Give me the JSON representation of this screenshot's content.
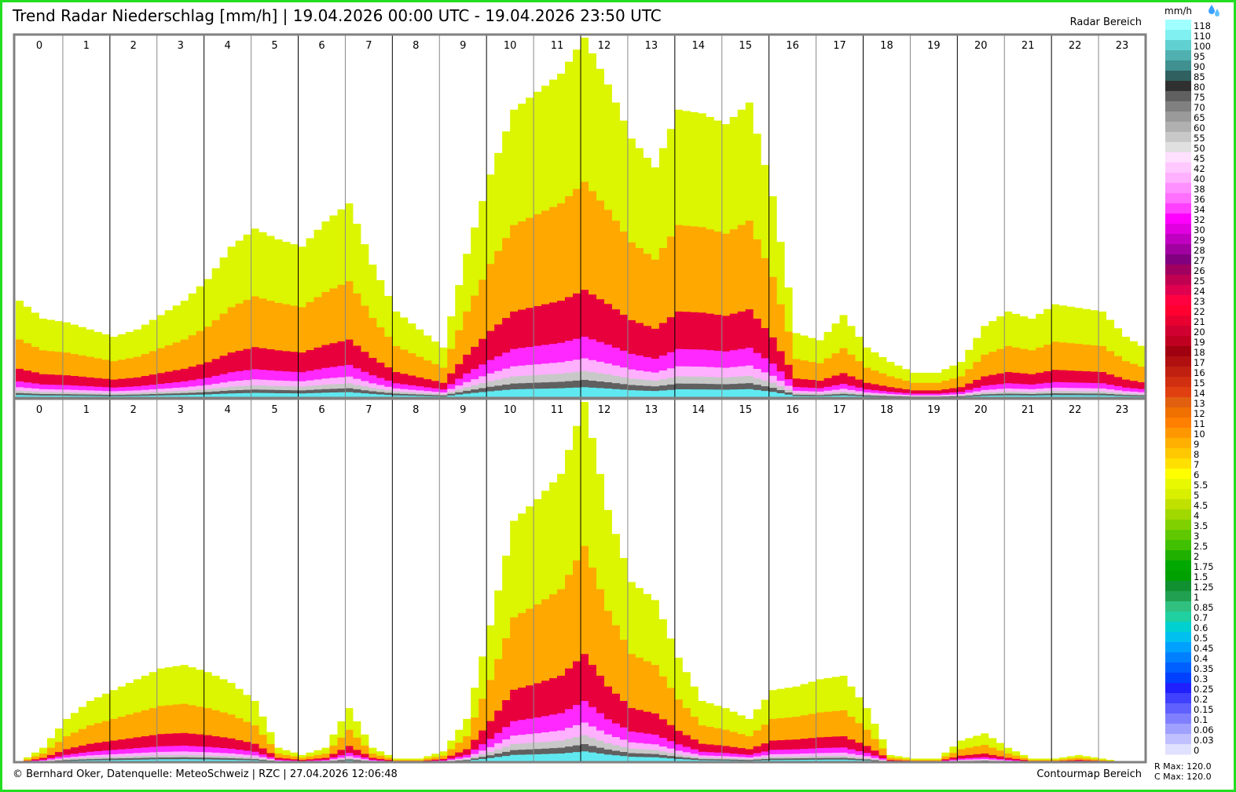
{
  "header": {
    "title": "Trend Radar Niederschlag [mm/h] | 19.04.2026 00:00 UTC - 19.04.2026 23:50 UTC",
    "radar_label": "Radar Bereich",
    "contour_label": "Contourmap Bereich"
  },
  "footer": {
    "credit": "© Bernhard Oker, Datenquelle: MeteoSchweiz | RZC | 27.04.2026 12:06:48",
    "r_max": "R Max: 120.0",
    "c_max": "C Max: 120.0"
  },
  "legend": {
    "unit": "mm/h",
    "icon": "raindrops-icon",
    "levels": [
      {
        "label": "118",
        "color": "#a0ffff"
      },
      {
        "label": "110",
        "color": "#80f0f0"
      },
      {
        "label": "100",
        "color": "#60d0d0"
      },
      {
        "label": "95",
        "color": "#50b0b0"
      },
      {
        "label": "90",
        "color": "#409090"
      },
      {
        "label": "85",
        "color": "#306060"
      },
      {
        "label": "80",
        "color": "#303030"
      },
      {
        "label": "75",
        "color": "#606060"
      },
      {
        "label": "70",
        "color": "#808080"
      },
      {
        "label": "65",
        "color": "#9a9a9a"
      },
      {
        "label": "60",
        "color": "#b0b0b0"
      },
      {
        "label": "55",
        "color": "#c8c8c8"
      },
      {
        "label": "50",
        "color": "#e0e0e0"
      },
      {
        "label": "45",
        "color": "#ffe0ff"
      },
      {
        "label": "42",
        "color": "#ffc8ff"
      },
      {
        "label": "40",
        "color": "#ffb0ff"
      },
      {
        "label": "38",
        "color": "#ff90ff"
      },
      {
        "label": "36",
        "color": "#ff70ff"
      },
      {
        "label": "34",
        "color": "#ff40ff"
      },
      {
        "label": "32",
        "color": "#ff00ff"
      },
      {
        "label": "30",
        "color": "#e000e0"
      },
      {
        "label": "29",
        "color": "#c000c0"
      },
      {
        "label": "28",
        "color": "#a000a0"
      },
      {
        "label": "27",
        "color": "#800080"
      },
      {
        "label": "26",
        "color": "#a00060"
      },
      {
        "label": "25",
        "color": "#c00050"
      },
      {
        "label": "24",
        "color": "#e00050"
      },
      {
        "label": "23",
        "color": "#ff0040"
      },
      {
        "label": "22",
        "color": "#ff0030"
      },
      {
        "label": "21",
        "color": "#e80030"
      },
      {
        "label": "20",
        "color": "#d00030"
      },
      {
        "label": "19",
        "color": "#c00020"
      },
      {
        "label": "18",
        "color": "#a00010"
      },
      {
        "label": "17",
        "color": "#b01010"
      },
      {
        "label": "16",
        "color": "#c02010"
      },
      {
        "label": "15",
        "color": "#d03010"
      },
      {
        "label": "14",
        "color": "#e04010"
      },
      {
        "label": "13",
        "color": "#e06010"
      },
      {
        "label": "12",
        "color": "#f07000"
      },
      {
        "label": "11",
        "color": "#ff8000"
      },
      {
        "label": "10",
        "color": "#ff9800"
      },
      {
        "label": "9",
        "color": "#ffb000"
      },
      {
        "label": "8",
        "color": "#ffc800"
      },
      {
        "label": "7",
        "color": "#ffe000"
      },
      {
        "label": "6",
        "color": "#ffff00"
      },
      {
        "label": "5.5",
        "color": "#e8f800"
      },
      {
        "label": "5",
        "color": "#d8f000"
      },
      {
        "label": "4.5",
        "color": "#c0e000"
      },
      {
        "label": "4",
        "color": "#a0d800"
      },
      {
        "label": "3.5",
        "color": "#80d000"
      },
      {
        "label": "3",
        "color": "#60c800"
      },
      {
        "label": "2.5",
        "color": "#40c000"
      },
      {
        "label": "2",
        "color": "#20b000"
      },
      {
        "label": "1.75",
        "color": "#00a800"
      },
      {
        "label": "1.5",
        "color": "#00a000"
      },
      {
        "label": "1.25",
        "color": "#109030"
      },
      {
        "label": "1",
        "color": "#20a050"
      },
      {
        "label": "0.85",
        "color": "#30c080"
      },
      {
        "label": "0.7",
        "color": "#20d0a0"
      },
      {
        "label": "0.6",
        "color": "#00d0d0"
      },
      {
        "label": "0.5",
        "color": "#00c0f0"
      },
      {
        "label": "0.45",
        "color": "#00a0ff"
      },
      {
        "label": "0.4",
        "color": "#0080ff"
      },
      {
        "label": "0.35",
        "color": "#0060ff"
      },
      {
        "label": "0.3",
        "color": "#0040ff"
      },
      {
        "label": "0.25",
        "color": "#2020ff"
      },
      {
        "label": "0.2",
        "color": "#4040ff"
      },
      {
        "label": "0.15",
        "color": "#6060ff"
      },
      {
        "label": "0.1",
        "color": "#8080ff"
      },
      {
        "label": "0.06",
        "color": "#a0a0ff"
      },
      {
        "label": "0.03",
        "color": "#c0c0ff"
      },
      {
        "label": "0",
        "color": "#e0e0ff"
      }
    ]
  },
  "chart_data": [
    {
      "type": "area",
      "panel": "Radar Bereich",
      "x_unit": "hour (UTC)",
      "xlim": [
        0,
        24
      ],
      "hours": [
        "0",
        "1",
        "2",
        "3",
        "4",
        "5",
        "6",
        "7",
        "8",
        "9",
        "10",
        "11",
        "12",
        "13",
        "14",
        "15",
        "16",
        "17",
        "18",
        "19",
        "20",
        "21",
        "22",
        "23"
      ],
      "ylim": [
        0,
        100
      ],
      "series_colors": [
        "#dcf500",
        "#ffa800",
        "#e8003c",
        "#ff28ff",
        "#ffb0ff",
        "#c8c8c8",
        "#606060",
        "#60e8f0"
      ],
      "points": [
        {
          "x": 0.0,
          "y": 27
        },
        {
          "x": 0.5,
          "y": 22
        },
        {
          "x": 1.0,
          "y": 21
        },
        {
          "x": 1.5,
          "y": 19
        },
        {
          "x": 2.0,
          "y": 17
        },
        {
          "x": 2.5,
          "y": 19
        },
        {
          "x": 3.0,
          "y": 23
        },
        {
          "x": 3.5,
          "y": 27
        },
        {
          "x": 4.0,
          "y": 33
        },
        {
          "x": 4.5,
          "y": 42
        },
        {
          "x": 5.0,
          "y": 47
        },
        {
          "x": 5.5,
          "y": 44
        },
        {
          "x": 6.0,
          "y": 42
        },
        {
          "x": 6.5,
          "y": 49
        },
        {
          "x": 7.0,
          "y": 54
        },
        {
          "x": 7.5,
          "y": 37
        },
        {
          "x": 8.0,
          "y": 24
        },
        {
          "x": 8.5,
          "y": 19
        },
        {
          "x": 9.0,
          "y": 14
        },
        {
          "x": 9.5,
          "y": 40
        },
        {
          "x": 10.0,
          "y": 62
        },
        {
          "x": 10.5,
          "y": 80
        },
        {
          "x": 11.0,
          "y": 85
        },
        {
          "x": 11.5,
          "y": 90
        },
        {
          "x": 12.0,
          "y": 100
        },
        {
          "x": 12.5,
          "y": 87
        },
        {
          "x": 13.0,
          "y": 72
        },
        {
          "x": 13.5,
          "y": 64
        },
        {
          "x": 14.0,
          "y": 80
        },
        {
          "x": 14.5,
          "y": 79
        },
        {
          "x": 15.0,
          "y": 76
        },
        {
          "x": 15.5,
          "y": 82
        },
        {
          "x": 16.0,
          "y": 56
        },
        {
          "x": 16.5,
          "y": 18
        },
        {
          "x": 17.0,
          "y": 16
        },
        {
          "x": 17.5,
          "y": 23
        },
        {
          "x": 18.0,
          "y": 14
        },
        {
          "x": 18.5,
          "y": 10
        },
        {
          "x": 19.0,
          "y": 7
        },
        {
          "x": 19.5,
          "y": 7
        },
        {
          "x": 20.0,
          "y": 10
        },
        {
          "x": 20.5,
          "y": 20
        },
        {
          "x": 21.0,
          "y": 24
        },
        {
          "x": 21.5,
          "y": 22
        },
        {
          "x": 22.0,
          "y": 26
        },
        {
          "x": 22.5,
          "y": 25
        },
        {
          "x": 23.0,
          "y": 24
        },
        {
          "x": 23.5,
          "y": 17
        },
        {
          "x": 23.9,
          "y": 14
        }
      ]
    },
    {
      "type": "area",
      "panel": "Contourmap Bereich",
      "x_unit": "hour (UTC)",
      "xlim": [
        0,
        24
      ],
      "hours": [
        "0",
        "1",
        "2",
        "3",
        "4",
        "5",
        "6",
        "7",
        "8",
        "9",
        "10",
        "11",
        "12",
        "13",
        "14",
        "15",
        "16",
        "17",
        "18",
        "19",
        "20",
        "21",
        "22",
        "23"
      ],
      "ylim": [
        0,
        100
      ],
      "series_colors": [
        "#dcf500",
        "#ffa800",
        "#e8003c",
        "#ff28ff",
        "#ffb0ff",
        "#c8c8c8",
        "#606060",
        "#60e8f0"
      ],
      "points": [
        {
          "x": 0.0,
          "y": 0
        },
        {
          "x": 0.5,
          "y": 4
        },
        {
          "x": 1.0,
          "y": 12
        },
        {
          "x": 1.5,
          "y": 17
        },
        {
          "x": 2.0,
          "y": 20
        },
        {
          "x": 2.5,
          "y": 23
        },
        {
          "x": 3.0,
          "y": 26
        },
        {
          "x": 3.5,
          "y": 27
        },
        {
          "x": 4.0,
          "y": 25
        },
        {
          "x": 4.5,
          "y": 22
        },
        {
          "x": 5.0,
          "y": 17
        },
        {
          "x": 5.5,
          "y": 4
        },
        {
          "x": 6.0,
          "y": 2
        },
        {
          "x": 6.5,
          "y": 4
        },
        {
          "x": 7.0,
          "y": 15
        },
        {
          "x": 7.5,
          "y": 4
        },
        {
          "x": 8.0,
          "y": 1
        },
        {
          "x": 8.5,
          "y": 1
        },
        {
          "x": 9.0,
          "y": 3
        },
        {
          "x": 9.5,
          "y": 12
        },
        {
          "x": 10.0,
          "y": 38
        },
        {
          "x": 10.5,
          "y": 67
        },
        {
          "x": 11.0,
          "y": 73
        },
        {
          "x": 11.5,
          "y": 80
        },
        {
          "x": 12.0,
          "y": 100
        },
        {
          "x": 12.5,
          "y": 70
        },
        {
          "x": 13.0,
          "y": 50
        },
        {
          "x": 13.5,
          "y": 45
        },
        {
          "x": 14.0,
          "y": 29
        },
        {
          "x": 14.5,
          "y": 17
        },
        {
          "x": 15.0,
          "y": 15
        },
        {
          "x": 15.5,
          "y": 12
        },
        {
          "x": 16.0,
          "y": 20
        },
        {
          "x": 16.5,
          "y": 21
        },
        {
          "x": 17.0,
          "y": 23
        },
        {
          "x": 17.5,
          "y": 24
        },
        {
          "x": 18.0,
          "y": 15
        },
        {
          "x": 18.5,
          "y": 2
        },
        {
          "x": 19.0,
          "y": 1
        },
        {
          "x": 19.5,
          "y": 1
        },
        {
          "x": 20.0,
          "y": 6
        },
        {
          "x": 20.5,
          "y": 8
        },
        {
          "x": 21.0,
          "y": 4
        },
        {
          "x": 21.5,
          "y": 1
        },
        {
          "x": 22.0,
          "y": 1
        },
        {
          "x": 22.5,
          "y": 2
        },
        {
          "x": 23.0,
          "y": 1
        },
        {
          "x": 23.5,
          "y": 0
        },
        {
          "x": 23.9,
          "y": 0
        }
      ]
    }
  ]
}
